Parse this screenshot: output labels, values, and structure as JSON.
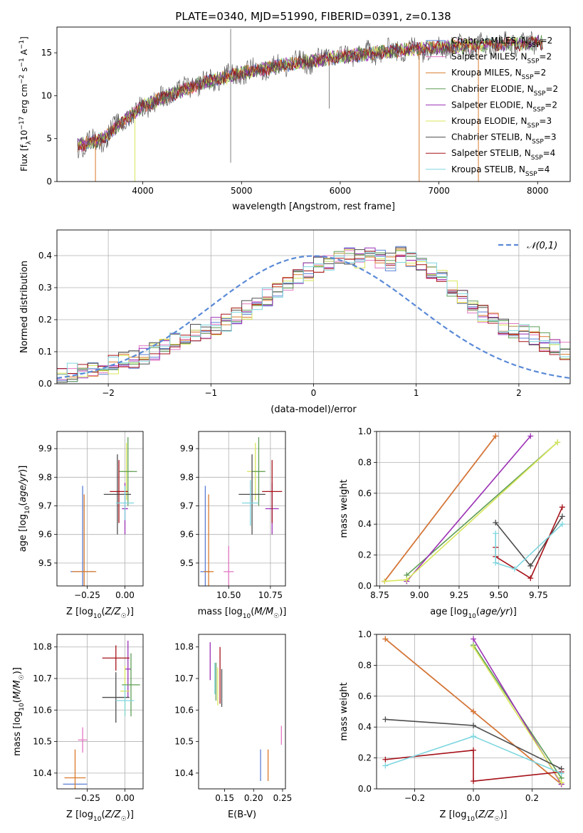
{
  "figure": {
    "title": "PLATE=0340, MJD=51990, FIBERID=0391, z=0.138"
  },
  "chart_data": [
    {
      "id": "spectrum",
      "type": "line",
      "xlabel": "wavelength [Angstrom, rest frame]",
      "ylabel": "Flux [f_λ 10^-17 erg cm^-2 s^-1 A^-1]",
      "xlim": [
        3130,
        8330
      ],
      "ylim": [
        0,
        18
      ],
      "xticks": [
        4000,
        5000,
        6000,
        7000,
        8000
      ],
      "yticks": [
        0,
        5,
        10,
        15
      ],
      "grid": false,
      "legend_position": "top-right",
      "continuum": {
        "x": [
          3350,
          3600,
          3800,
          4000,
          4300,
          4600,
          5000,
          5400,
          5800,
          6200,
          6600,
          7000,
          7400,
          7800,
          8050
        ],
        "y": [
          4.2,
          5.0,
          7.0,
          8.8,
          10.2,
          11.5,
          12.6,
          13.5,
          14.2,
          14.8,
          15.3,
          15.6,
          15.9,
          16.1,
          16.2
        ]
      },
      "series": [
        {
          "name": "Chabrier MILES, N_SSP=2",
          "color": "#5a7fd6"
        },
        {
          "name": "Salpeter MILES, N_SSP=2",
          "color": "#e377c2"
        },
        {
          "name": "Kroupa MILES, N_SSP=2",
          "color": "#d97a2b"
        },
        {
          "name": "Chabrier ELODIE, N_SSP=2",
          "color": "#5f9e55"
        },
        {
          "name": "Salpeter ELODIE, N_SSP=2",
          "color": "#9b2fb5"
        },
        {
          "name": "Kroupa ELODIE, N_SSP=3",
          "color": "#d8e65a"
        },
        {
          "name": "Chabrier STELIB, N_SSP=3",
          "color": "#4d4d4d"
        },
        {
          "name": "Salpeter STELIB, N_SSP=4",
          "color": "#a5121a"
        },
        {
          "name": "Kroupa STELIB, N_SSP=4",
          "color": "#7fd6df"
        }
      ]
    },
    {
      "id": "residuals",
      "type": "step",
      "xlabel": "(data-model)/error",
      "ylabel": "Normed distribution",
      "xlim": [
        -2.5,
        2.5
      ],
      "ylim": [
        0,
        0.48
      ],
      "xticks": [
        -2,
        -1,
        0,
        1,
        2
      ],
      "yticks": [
        0.0,
        0.1,
        0.2,
        0.3,
        0.4
      ],
      "grid": true,
      "reference": {
        "name": "𝒩(0,1)",
        "color": "#5a8ad6",
        "style": "dashed"
      },
      "bin_edges_start": -2.5,
      "bin_width": 0.1,
      "histogram": [
        0.03,
        0.035,
        0.04,
        0.045,
        0.055,
        0.06,
        0.07,
        0.075,
        0.09,
        0.1,
        0.11,
        0.13,
        0.15,
        0.16,
        0.17,
        0.18,
        0.19,
        0.21,
        0.23,
        0.25,
        0.27,
        0.29,
        0.31,
        0.33,
        0.35,
        0.37,
        0.38,
        0.39,
        0.4,
        0.39,
        0.41,
        0.39,
        0.38,
        0.4,
        0.39,
        0.37,
        0.35,
        0.33,
        0.3,
        0.27,
        0.25,
        0.22,
        0.2,
        0.18,
        0.17,
        0.16,
        0.15,
        0.13,
        0.12,
        0.1
      ]
    },
    {
      "id": "z-age",
      "type": "scatter",
      "xlabel": "Z [log10(Z/Z☉)]",
      "ylabel": "age  [log10(age/yr)]",
      "xlim": [
        -0.45,
        0.12
      ],
      "ylim": [
        9.42,
        9.96
      ],
      "xticks": [
        -0.25,
        0.0
      ],
      "xticklabels": [
        "−0.25",
        "0.00"
      ],
      "yticks": [
        9.5,
        9.6,
        9.7,
        9.8,
        9.9
      ],
      "grid": true,
      "points": [
        {
          "x": -0.28,
          "y": 9.47,
          "xerr": 0.08,
          "yerr": 0.3,
          "color": "#5a7fd6"
        },
        {
          "x": -0.27,
          "y": 9.47,
          "xerr": 0.08,
          "yerr": 0.27,
          "color": "#d97a2b"
        },
        {
          "x": 0.0,
          "y": 9.69,
          "xerr": 0.02,
          "yerr": 0.09,
          "color": "#9b2fb5"
        },
        {
          "x": 0.01,
          "y": 9.82,
          "xerr": 0.04,
          "yerr": 0.1,
          "color": "#d8e65a"
        },
        {
          "x": 0.02,
          "y": 9.82,
          "xerr": 0.06,
          "yerr": 0.12,
          "color": "#5f9e55"
        },
        {
          "x": -0.05,
          "y": 9.74,
          "xerr": 0.09,
          "yerr": 0.14,
          "color": "#4d4d4d"
        },
        {
          "x": -0.04,
          "y": 9.75,
          "xerr": 0.06,
          "yerr": 0.11,
          "color": "#a5121a"
        },
        {
          "x": 0.0,
          "y": 9.71,
          "xerr": 0.06,
          "yerr": 0.06,
          "color": "#7fd6df"
        }
      ]
    },
    {
      "id": "mass-age",
      "type": "scatter",
      "xlabel": "mass [log10(M/M☉)]",
      "ylabel": "",
      "xlim": [
        10.32,
        10.84
      ],
      "ylim": [
        9.42,
        9.96
      ],
      "xticks": [
        10.5,
        10.75
      ],
      "xticklabels": [
        "10.50",
        "10.75"
      ],
      "yticks": [
        9.5,
        9.6,
        9.7,
        9.8,
        9.9
      ],
      "grid": true,
      "points": [
        {
          "x": 10.36,
          "y": 9.47,
          "xerr": 0.03,
          "yerr": 0.3,
          "color": "#5a7fd6"
        },
        {
          "x": 10.38,
          "y": 9.47,
          "xerr": 0.03,
          "yerr": 0.27,
          "color": "#d97a2b"
        },
        {
          "x": 10.5,
          "y": 9.47,
          "xerr": 0.03,
          "yerr": 0.09,
          "color": "#e377c2"
        },
        {
          "x": 10.76,
          "y": 9.69,
          "xerr": 0.04,
          "yerr": 0.09,
          "color": "#9b2fb5"
        },
        {
          "x": 10.66,
          "y": 9.82,
          "xerr": 0.05,
          "yerr": 0.1,
          "color": "#d8e65a"
        },
        {
          "x": 10.68,
          "y": 9.82,
          "xerr": 0.04,
          "yerr": 0.12,
          "color": "#5f9e55"
        },
        {
          "x": 10.64,
          "y": 9.74,
          "xerr": 0.08,
          "yerr": 0.14,
          "color": "#4d4d4d"
        },
        {
          "x": 10.76,
          "y": 9.75,
          "xerr": 0.06,
          "yerr": 0.11,
          "color": "#a5121a"
        },
        {
          "x": 10.63,
          "y": 9.71,
          "xerr": 0.05,
          "yerr": 0.08,
          "color": "#7fd6df"
        }
      ]
    },
    {
      "id": "z-mass",
      "type": "scatter",
      "xlabel": "Z [log10(Z/Z☉)]",
      "ylabel": "mass [log10(M/M☉)]",
      "xlim": [
        -0.45,
        0.12
      ],
      "ylim": [
        10.35,
        10.84
      ],
      "xticks": [
        -0.25,
        0.0
      ],
      "xticklabels": [
        "−0.25",
        "0.00"
      ],
      "yticks": [
        10.4,
        10.5,
        10.6,
        10.7,
        10.8
      ],
      "grid": true,
      "points": [
        {
          "x": -0.33,
          "y": 10.365,
          "xerr": 0.08,
          "yerr": 0.0,
          "color": "#5a7fd6"
        },
        {
          "x": -0.33,
          "y": 10.385,
          "xerr": 0.07,
          "yerr": 0.09,
          "color": "#d97a2b"
        },
        {
          "x": -0.28,
          "y": 10.505,
          "xerr": 0.03,
          "yerr": 0.04,
          "color": "#e377c2"
        },
        {
          "x": 0.02,
          "y": 10.73,
          "xerr": 0.02,
          "yerr": 0.09,
          "color": "#9b2fb5"
        },
        {
          "x": 0.0,
          "y": 10.66,
          "xerr": 0.03,
          "yerr": 0.08,
          "color": "#d8e65a"
        },
        {
          "x": 0.04,
          "y": 10.68,
          "xerr": 0.06,
          "yerr": 0.1,
          "color": "#5f9e55"
        },
        {
          "x": -0.06,
          "y": 10.64,
          "xerr": 0.09,
          "yerr": 0.08,
          "color": "#4d4d4d"
        },
        {
          "x": -0.06,
          "y": 10.765,
          "xerr": 0.09,
          "yerr": 0.04,
          "color": "#a5121a"
        },
        {
          "x": 0.0,
          "y": 10.63,
          "xerr": 0.06,
          "yerr": 0.05,
          "color": "#7fd6df"
        }
      ]
    },
    {
      "id": "ebv-mass",
      "type": "scatter",
      "xlabel": "E(B-V)",
      "ylabel": "",
      "xlim": [
        0.105,
        0.255
      ],
      "ylim": [
        10.35,
        10.84
      ],
      "xticks": [
        0.15,
        0.2,
        0.25
      ],
      "xticklabels": [
        "0.15",
        "0.20",
        "0.25"
      ],
      "yticks": [
        10.4,
        10.5,
        10.6,
        10.7,
        10.8
      ],
      "grid": false,
      "points": [
        {
          "x": 0.212,
          "y": 10.425,
          "xerr": 0.0,
          "yerr": 0.05,
          "color": "#5a7fd6"
        },
        {
          "x": 0.225,
          "y": 10.425,
          "xerr": 0.0,
          "yerr": 0.05,
          "color": "#d97a2b"
        },
        {
          "x": 0.248,
          "y": 10.52,
          "xerr": 0.0,
          "yerr": 0.03,
          "color": "#e377c2"
        },
        {
          "x": 0.125,
          "y": 10.755,
          "xerr": 0.0,
          "yerr": 0.06,
          "color": "#9b2fb5"
        },
        {
          "x": 0.138,
          "y": 10.675,
          "xerr": 0.0,
          "yerr": 0.06,
          "color": "#d8e65a"
        },
        {
          "x": 0.135,
          "y": 10.69,
          "xerr": 0.0,
          "yerr": 0.06,
          "color": "#5f9e55"
        },
        {
          "x": 0.145,
          "y": 10.67,
          "xerr": 0.0,
          "yerr": 0.06,
          "color": "#4d4d4d"
        },
        {
          "x": 0.142,
          "y": 10.71,
          "xerr": 0.0,
          "yerr": 0.09,
          "color": "#a5121a"
        },
        {
          "x": 0.133,
          "y": 10.7,
          "xerr": 0.0,
          "yerr": 0.05,
          "color": "#7fd6df"
        }
      ]
    },
    {
      "id": "age-weight",
      "type": "line",
      "xlabel": "age  [log10(age/yr)]",
      "ylabel": "mass weight",
      "xlim": [
        8.73,
        9.95
      ],
      "ylim": [
        0,
        1
      ],
      "xticks": [
        8.75,
        9.0,
        9.25,
        9.5,
        9.75
      ],
      "xticklabels": [
        "8.75",
        "9.00",
        "9.25",
        "9.50",
        "9.75"
      ],
      "yticks": [
        0.0,
        0.2,
        0.4,
        0.6,
        0.8,
        1.0
      ],
      "grid": true,
      "series": [
        {
          "name": "Chabrier MILES",
          "color": "#5a7fd6",
          "x": [
            8.78,
            9.48
          ],
          "y": [
            0.03,
            0.97
          ]
        },
        {
          "name": "Salpeter MILES",
          "color": "#e377c2",
          "x": [
            8.78,
            9.48
          ],
          "y": [
            0.03,
            0.97
          ]
        },
        {
          "name": "Kroupa MILES",
          "color": "#d97a2b",
          "x": [
            8.78,
            9.48
          ],
          "y": [
            0.03,
            0.97
          ]
        },
        {
          "name": "Chabrier ELODIE",
          "color": "#5f9e55",
          "x": [
            8.92,
            9.87
          ],
          "y": [
            0.07,
            0.93
          ]
        },
        {
          "name": "Salpeter ELODIE",
          "color": "#9b2fb5",
          "x": [
            8.92,
            9.7
          ],
          "y": [
            0.03,
            0.97
          ]
        },
        {
          "name": "Kroupa ELODIE",
          "color": "#d8e65a",
          "x": [
            8.78,
            8.92,
            9.87
          ],
          "y": [
            0.03,
            0.04,
            0.93
          ]
        },
        {
          "name": "Chabrier STELIB",
          "color": "#4d4d4d",
          "x": [
            9.48,
            9.7,
            9.9
          ],
          "y": [
            0.41,
            0.13,
            0.45
          ]
        },
        {
          "name": "Salpeter STELIB",
          "color": "#a5121a",
          "x": [
            9.48,
            9.48,
            9.7,
            9.9
          ],
          "y": [
            0.25,
            0.19,
            0.05,
            0.51
          ]
        },
        {
          "name": "Kroupa STELIB",
          "color": "#7fd6df",
          "x": [
            9.48,
            9.48,
            9.6,
            9.9
          ],
          "y": [
            0.34,
            0.15,
            0.11,
            0.4
          ]
        }
      ]
    },
    {
      "id": "z-weight",
      "type": "line",
      "xlabel": "Z [log10(Z/Z☉)]",
      "ylabel": "mass weight",
      "xlim": [
        -0.33,
        0.33
      ],
      "ylim": [
        0,
        1
      ],
      "xticks": [
        -0.2,
        0.0,
        0.2
      ],
      "xticklabels": [
        "−0.2",
        "0.0",
        "0.2"
      ],
      "yticks": [
        0.0,
        0.2,
        0.4,
        0.6,
        0.8,
        1.0
      ],
      "grid": true,
      "series": [
        {
          "name": "Chabrier MILES",
          "color": "#5a7fd6",
          "x": [
            -0.3,
            0.0,
            0.3
          ],
          "y": [
            0.97,
            0.5,
            0.03
          ]
        },
        {
          "name": "Salpeter MILES",
          "color": "#e377c2",
          "x": [
            -0.3,
            0.0,
            0.3
          ],
          "y": [
            0.97,
            0.5,
            0.03
          ]
        },
        {
          "name": "Kroupa MILES",
          "color": "#d97a2b",
          "x": [
            -0.3,
            0.0,
            0.3
          ],
          "y": [
            0.97,
            0.5,
            0.03
          ]
        },
        {
          "name": "Chabrier ELODIE",
          "color": "#5f9e55",
          "x": [
            0.0,
            0.3
          ],
          "y": [
            0.93,
            0.07
          ]
        },
        {
          "name": "Salpeter ELODIE",
          "color": "#9b2fb5",
          "x": [
            0.0,
            0.3
          ],
          "y": [
            0.97,
            0.03
          ]
        },
        {
          "name": "Kroupa ELODIE",
          "color": "#d8e65a",
          "x": [
            0.0,
            0.3
          ],
          "y": [
            0.92,
            0.04
          ]
        },
        {
          "name": "Chabrier STELIB",
          "color": "#4d4d4d",
          "x": [
            -0.3,
            0.0,
            0.3
          ],
          "y": [
            0.45,
            0.41,
            0.13
          ]
        },
        {
          "name": "Salpeter STELIB",
          "color": "#a5121a",
          "x": [
            -0.3,
            0.0,
            0.0,
            0.3
          ],
          "y": [
            0.19,
            0.25,
            0.05,
            0.11
          ]
        },
        {
          "name": "Kroupa STELIB",
          "color": "#7fd6df",
          "x": [
            -0.3,
            0.0,
            0.0,
            0.3
          ],
          "y": [
            0.15,
            0.34,
            0.34,
            0.1
          ]
        }
      ]
    }
  ]
}
